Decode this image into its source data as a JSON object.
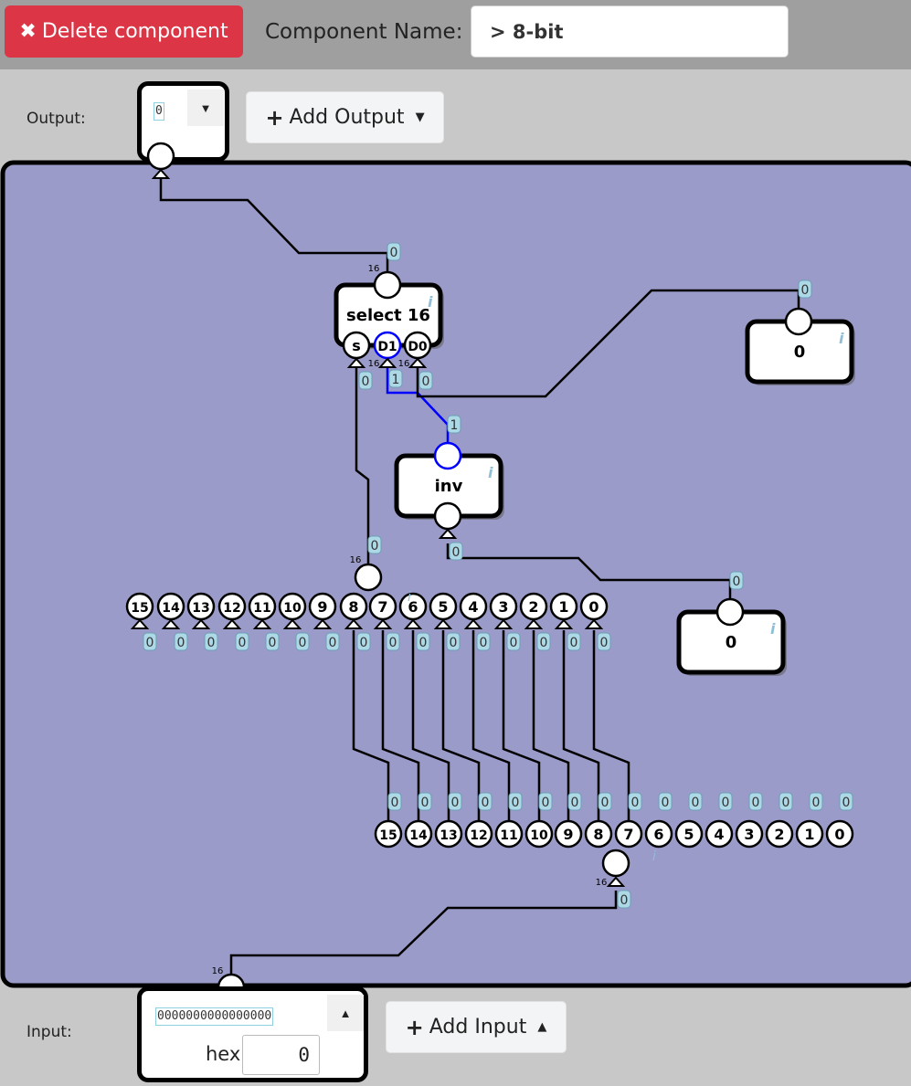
{
  "toolbar": {
    "delete_label": "Delete component",
    "delete_icon": "✖",
    "name_label": "Component Name:",
    "name_value": "> 8-bit"
  },
  "output_panel": {
    "label": "Output:",
    "value": "0",
    "add_label": "Add Output"
  },
  "input_panel": {
    "label": "Input:",
    "bits": "0000000000000000",
    "hex_label": "hex",
    "hex_value": "0",
    "add_label": "Add Input"
  },
  "components": {
    "select": {
      "title": "select 16",
      "pins": [
        "s",
        "D1",
        "D0"
      ],
      "pin_widths": [
        "16",
        "16"
      ]
    },
    "inv": {
      "title": "inv"
    },
    "const_a": {
      "value": "0"
    },
    "const_b": {
      "value": "0"
    },
    "splitter_top": {
      "width": "16",
      "bits": [
        "15",
        "14",
        "13",
        "12",
        "11",
        "10",
        "9",
        "8",
        "7",
        "6",
        "5",
        "4",
        "3",
        "2",
        "1",
        "0"
      ]
    },
    "splitter_bottom": {
      "width": "16",
      "bits": [
        "15",
        "14",
        "13",
        "12",
        "11",
        "10",
        "9",
        "8",
        "7",
        "6",
        "5",
        "4",
        "3",
        "2",
        "1",
        "0"
      ]
    },
    "output_width": "16",
    "input_width": "16"
  },
  "wire_values": {
    "select_out": "0",
    "const_a_out": "0",
    "select_s": "0",
    "select_d1": "1",
    "select_d0": "0",
    "inv_out": "1",
    "inv_in": "0",
    "const_b_out": "0",
    "splitter_top_in": "0",
    "splitter_top_bits": [
      "0",
      "0",
      "0",
      "0",
      "0",
      "0",
      "0",
      "0",
      "0",
      "0",
      "0",
      "0",
      "0",
      "0",
      "0",
      "0"
    ],
    "splitter_bottom_bits": [
      "0",
      "0",
      "0",
      "0",
      "0",
      "0",
      "0",
      "0",
      "0",
      "0",
      "0",
      "0",
      "0",
      "0",
      "0",
      "0"
    ],
    "splitter_bottom_in": "0"
  },
  "colors": {
    "canvas_bg": "#9b9bc9",
    "wire": "#000000",
    "active_wire": "#0000ff",
    "label_bg": "#add8e6",
    "delete_bg": "#dc3545"
  }
}
